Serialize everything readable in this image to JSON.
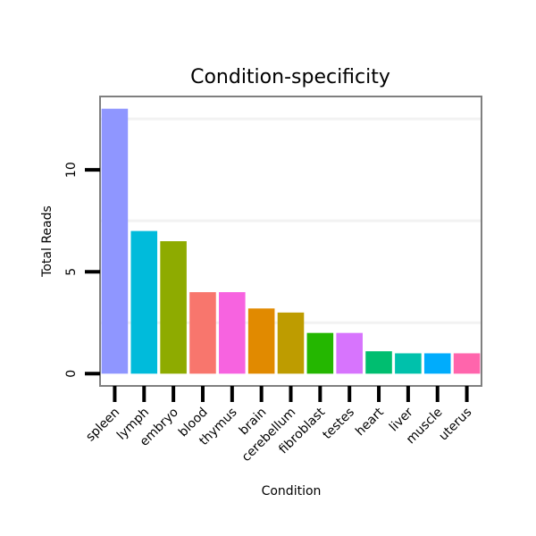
{
  "chart_data": {
    "type": "bar",
    "title": "Condition-specificity",
    "xlabel": "Condition",
    "ylabel": "Total Reads",
    "categories": [
      "spleen",
      "lymph",
      "embryo",
      "blood",
      "thymus",
      "brain",
      "cerebellum",
      "fibroblast",
      "testes",
      "heart",
      "liver",
      "muscle",
      "uterus"
    ],
    "values": [
      13,
      7,
      6.5,
      4,
      4,
      3.2,
      3,
      2,
      2,
      1.1,
      1,
      1,
      1
    ],
    "colors": [
      "#8F96FF",
      "#00BBDB",
      "#8EAB00",
      "#F8766D",
      "#F763E0",
      "#E18A00",
      "#BE9C00",
      "#24B700",
      "#D774FD",
      "#00BE70",
      "#00C1AB",
      "#00ACFC",
      "#FF65AC"
    ],
    "yticks": [
      0,
      5,
      10
    ],
    "ylim": [
      -0.6,
      13.6
    ],
    "grid": "horizontal minor lines",
    "legend": "none"
  }
}
